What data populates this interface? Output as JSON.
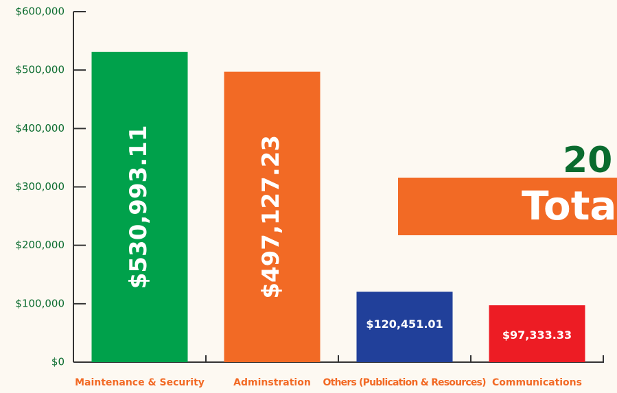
{
  "chart_data": {
    "type": "bar",
    "categories": [
      "Maintenance & Security",
      "Adminstration",
      "Others (Publication & Resources)",
      "Communications"
    ],
    "values": [
      530993.11,
      497127.23,
      120451.01,
      97333.33
    ],
    "value_labels": [
      "$530,993.11",
      "$497,127.23",
      "$120,451.01",
      "$97,333.33"
    ],
    "colors": [
      "#00a14b",
      "#f26a25",
      "#21409a",
      "#ed1c24"
    ],
    "ylim": [
      0,
      600000
    ],
    "yticks": [
      {
        "value": 0,
        "label": "$0"
      },
      {
        "value": 100000,
        "label": "$100,000"
      },
      {
        "value": 200000,
        "label": "$200,000"
      },
      {
        "value": 300000,
        "label": "$300,000"
      },
      {
        "value": 400000,
        "label": "$400,000"
      },
      {
        "value": 500000,
        "label": "$500,000"
      },
      {
        "value": 600000,
        "label": "$600,000"
      }
    ],
    "annotations": [
      "20",
      "Total"
    ]
  }
}
